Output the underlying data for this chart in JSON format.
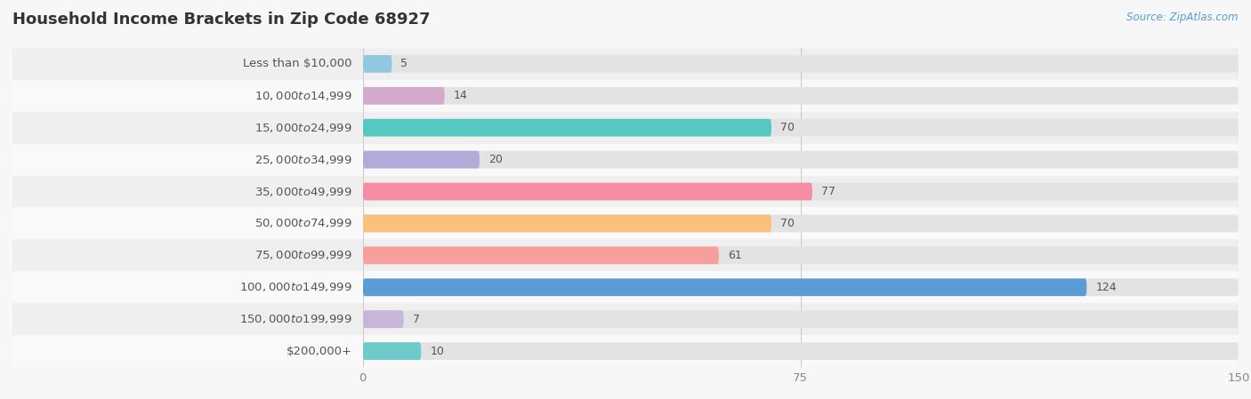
{
  "title": "Household Income Brackets in Zip Code 68927",
  "source": "Source: ZipAtlas.com",
  "categories": [
    "Less than $10,000",
    "$10,000 to $14,999",
    "$15,000 to $24,999",
    "$25,000 to $34,999",
    "$35,000 to $49,999",
    "$50,000 to $74,999",
    "$75,000 to $99,999",
    "$100,000 to $149,999",
    "$150,000 to $199,999",
    "$200,000+"
  ],
  "values": [
    5,
    14,
    70,
    20,
    77,
    70,
    61,
    124,
    7,
    10
  ],
  "bar_colors": [
    "#93C6E0",
    "#D4AACB",
    "#55C9C1",
    "#B3AADA",
    "#F78DA2",
    "#FAC07C",
    "#F7A09B",
    "#5B9CD6",
    "#C9B4DA",
    "#6DCBC9"
  ],
  "xlim": [
    0,
    150
  ],
  "xticks": [
    0,
    75,
    150
  ],
  "bg_color": "#f7f7f7",
  "row_bg_odd": "#efefef",
  "row_bg_even": "#f9f9f9",
  "bar_track_color": "#e3e3e3",
  "title_fontsize": 13,
  "label_fontsize": 9.5,
  "value_fontsize": 9,
  "source_fontsize": 8.5,
  "title_color": "#333333",
  "label_color": "#555555",
  "value_color": "#555555",
  "source_color": "#5B9CD6",
  "tick_color": "#888888"
}
